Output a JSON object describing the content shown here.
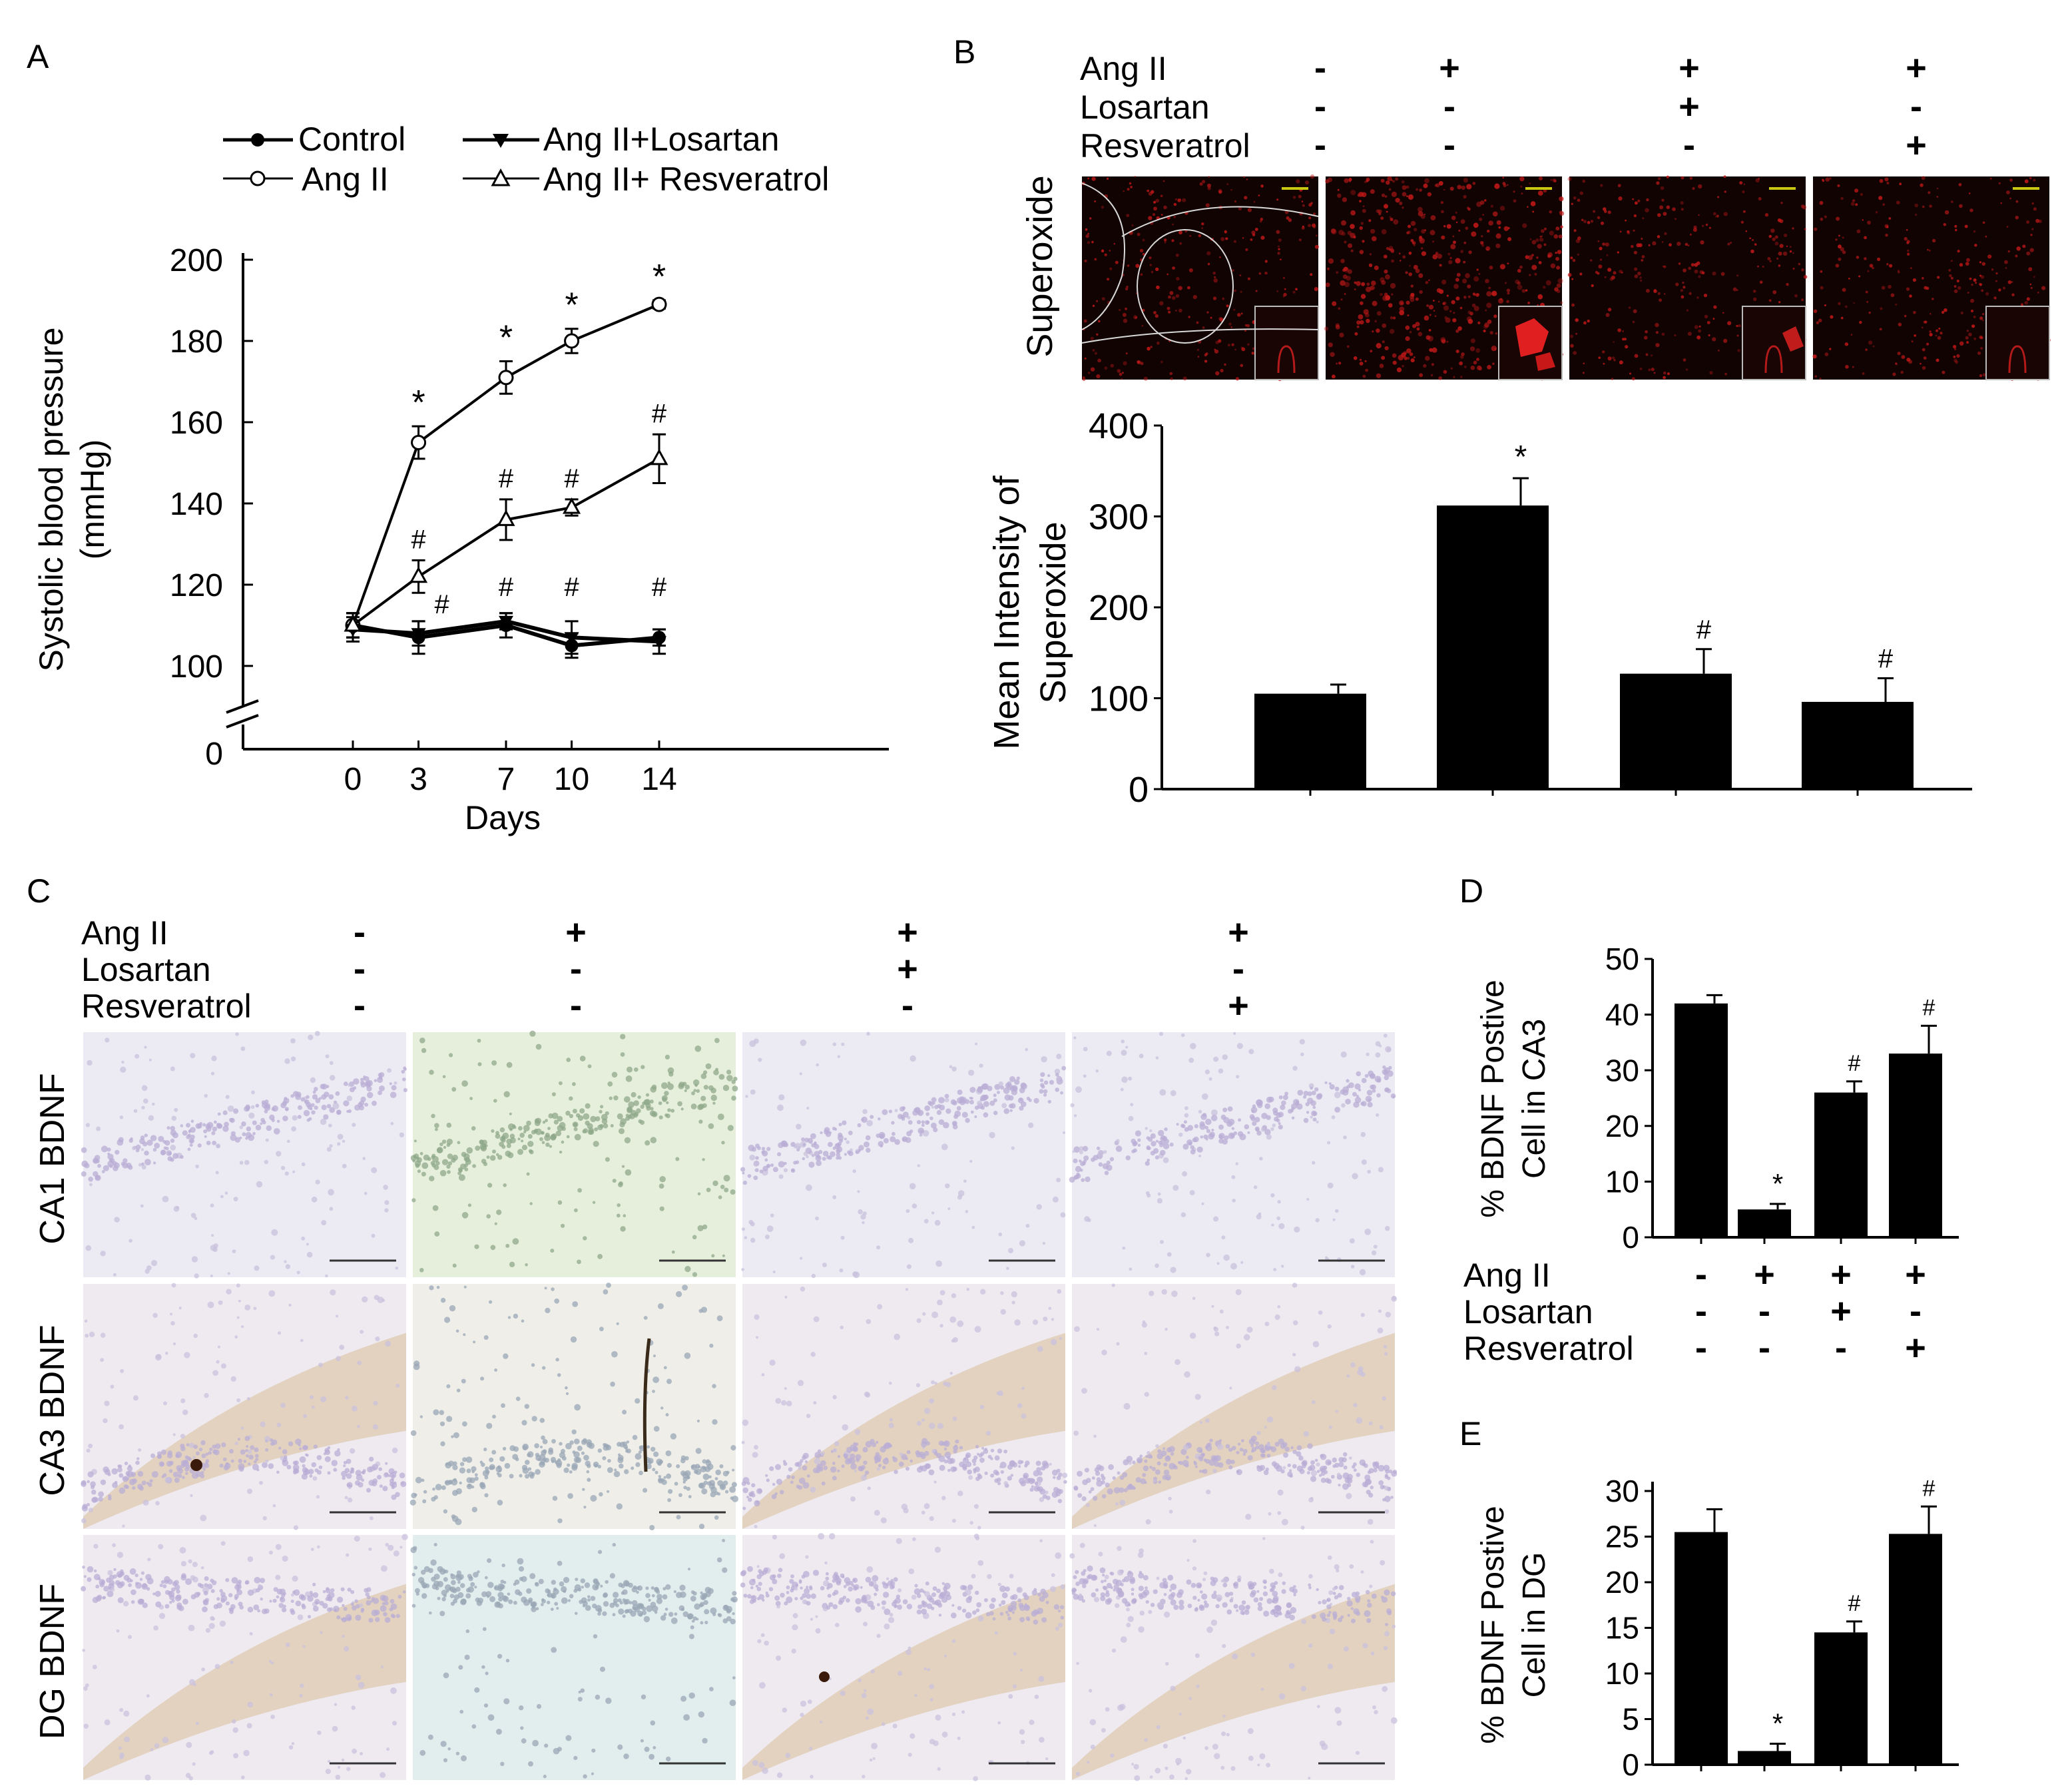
{
  "panel_letters": {
    "a": "A",
    "b": "B",
    "c": "C",
    "d": "D",
    "e": "E"
  },
  "treatment_rows": [
    {
      "label": "Ang II",
      "signs": [
        "-",
        "+",
        "+",
        "+"
      ]
    },
    {
      "label": "Losartan",
      "signs": [
        "-",
        "-",
        "+",
        "-"
      ]
    },
    {
      "label": "Resveratrol",
      "signs": [
        "-",
        "-",
        "-",
        "+"
      ]
    }
  ],
  "panel_b": {
    "image_row_label": "Superoxide"
  },
  "panel_c": {
    "row_labels": [
      "CA1 BDNF",
      "CA3 BDNF",
      "DG BDNF"
    ]
  },
  "colors": {
    "series": "#000000",
    "fluor_bg": "#120303",
    "fluor_dot": "#c01818",
    "stain_purple": "#b9aed6",
    "stain_brown": "#d7b98f",
    "stain_green_bg": "#e6efdc",
    "stain_blue_bg": "#e2eeee"
  },
  "chart_data": [
    {
      "id": "A",
      "type": "line",
      "title": "",
      "xlabel": "Days",
      "ylabel": "Systolic blood pressure (mmHg)",
      "ylabel_lines": [
        "Systolic blood pressure",
        "(mmHg)"
      ],
      "x": [
        0,
        3,
        7,
        10,
        14
      ],
      "x_ticks": [
        "0",
        "3",
        "7",
        "10",
        "14"
      ],
      "y_ticks": [
        "100",
        "120",
        "140",
        "160",
        "180",
        "200"
      ],
      "y_zero_label": "0",
      "ylim": [
        95,
        200
      ],
      "axis_break": true,
      "legend_position": "top",
      "series": [
        {
          "name": "Control",
          "marker": "filled-circle",
          "values": [
            110,
            107,
            110,
            105,
            107
          ],
          "errors": [
            3,
            4,
            3,
            3,
            2
          ],
          "annotations": [
            "",
            "",
            "",
            "",
            ""
          ]
        },
        {
          "name": "Ang II",
          "marker": "open-circle",
          "values": [
            110,
            155,
            171,
            180,
            189
          ],
          "errors": [
            3,
            4,
            4,
            3,
            1
          ],
          "annotations": [
            "",
            "*",
            "*",
            "*",
            "*"
          ]
        },
        {
          "name": "Ang II+Losartan",
          "marker": "filled-triangle-down",
          "values": [
            109,
            108,
            111,
            107,
            106
          ],
          "errors": [
            3,
            3,
            2,
            4,
            3
          ],
          "annotations": [
            "",
            "#",
            "#",
            "#",
            "#"
          ]
        },
        {
          "name": "Ang II+ Resveratrol",
          "marker": "open-triangle-up",
          "values": [
            110,
            122,
            136,
            139,
            151
          ],
          "errors": [
            3,
            4,
            5,
            2,
            6
          ],
          "annotations": [
            "",
            "#",
            "#",
            "#",
            "#"
          ]
        }
      ]
    },
    {
      "id": "B",
      "type": "bar",
      "title": "",
      "xlabel": "",
      "ylabel": "Mean Intensity of Superoxide",
      "ylabel_lines": [
        "Mean Intensity of",
        "Superoxide"
      ],
      "categories": [
        "Control",
        "Ang II",
        "Ang II+Losartan",
        "Ang II+Resveratrol"
      ],
      "values": [
        105,
        312,
        127,
        96
      ],
      "errors": [
        10,
        30,
        27,
        26
      ],
      "annotations": [
        "",
        "*",
        "#",
        "#"
      ],
      "y_ticks": [
        "0",
        "100",
        "200",
        "300",
        "400"
      ],
      "ylim": [
        0,
        400
      ]
    },
    {
      "id": "D",
      "type": "bar",
      "title": "",
      "xlabel": "",
      "ylabel": "% BDNF Postive Cell in CA3",
      "ylabel_lines": [
        "% BDNF Postive",
        "Cell in CA3"
      ],
      "categories": [
        "Control",
        "Ang II",
        "Ang II+Losartan",
        "Ang II+Resveratrol"
      ],
      "values": [
        42,
        5,
        26,
        33
      ],
      "errors": [
        1.5,
        1,
        2,
        5
      ],
      "annotations": [
        "",
        "*",
        "#",
        "#"
      ],
      "y_ticks": [
        "0",
        "10",
        "20",
        "30",
        "40",
        "50"
      ],
      "ylim": [
        0,
        50
      ]
    },
    {
      "id": "E",
      "type": "bar",
      "title": "",
      "xlabel": "",
      "ylabel": "% BDNF Postive Cell in DG",
      "ylabel_lines": [
        "% BDNF Postive",
        "Cell in DG"
      ],
      "categories": [
        "Control",
        "Ang II",
        "Ang II+Losartan",
        "Ang II+Resveratrol"
      ],
      "values": [
        25.5,
        1.5,
        14.5,
        25.3
      ],
      "errors": [
        2.5,
        0.8,
        1.2,
        3
      ],
      "annotations": [
        "",
        "*",
        "#",
        "#"
      ],
      "y_ticks": [
        "0",
        "5",
        "10",
        "15",
        "20",
        "25",
        "30"
      ],
      "ylim": [
        0,
        30
      ]
    }
  ]
}
